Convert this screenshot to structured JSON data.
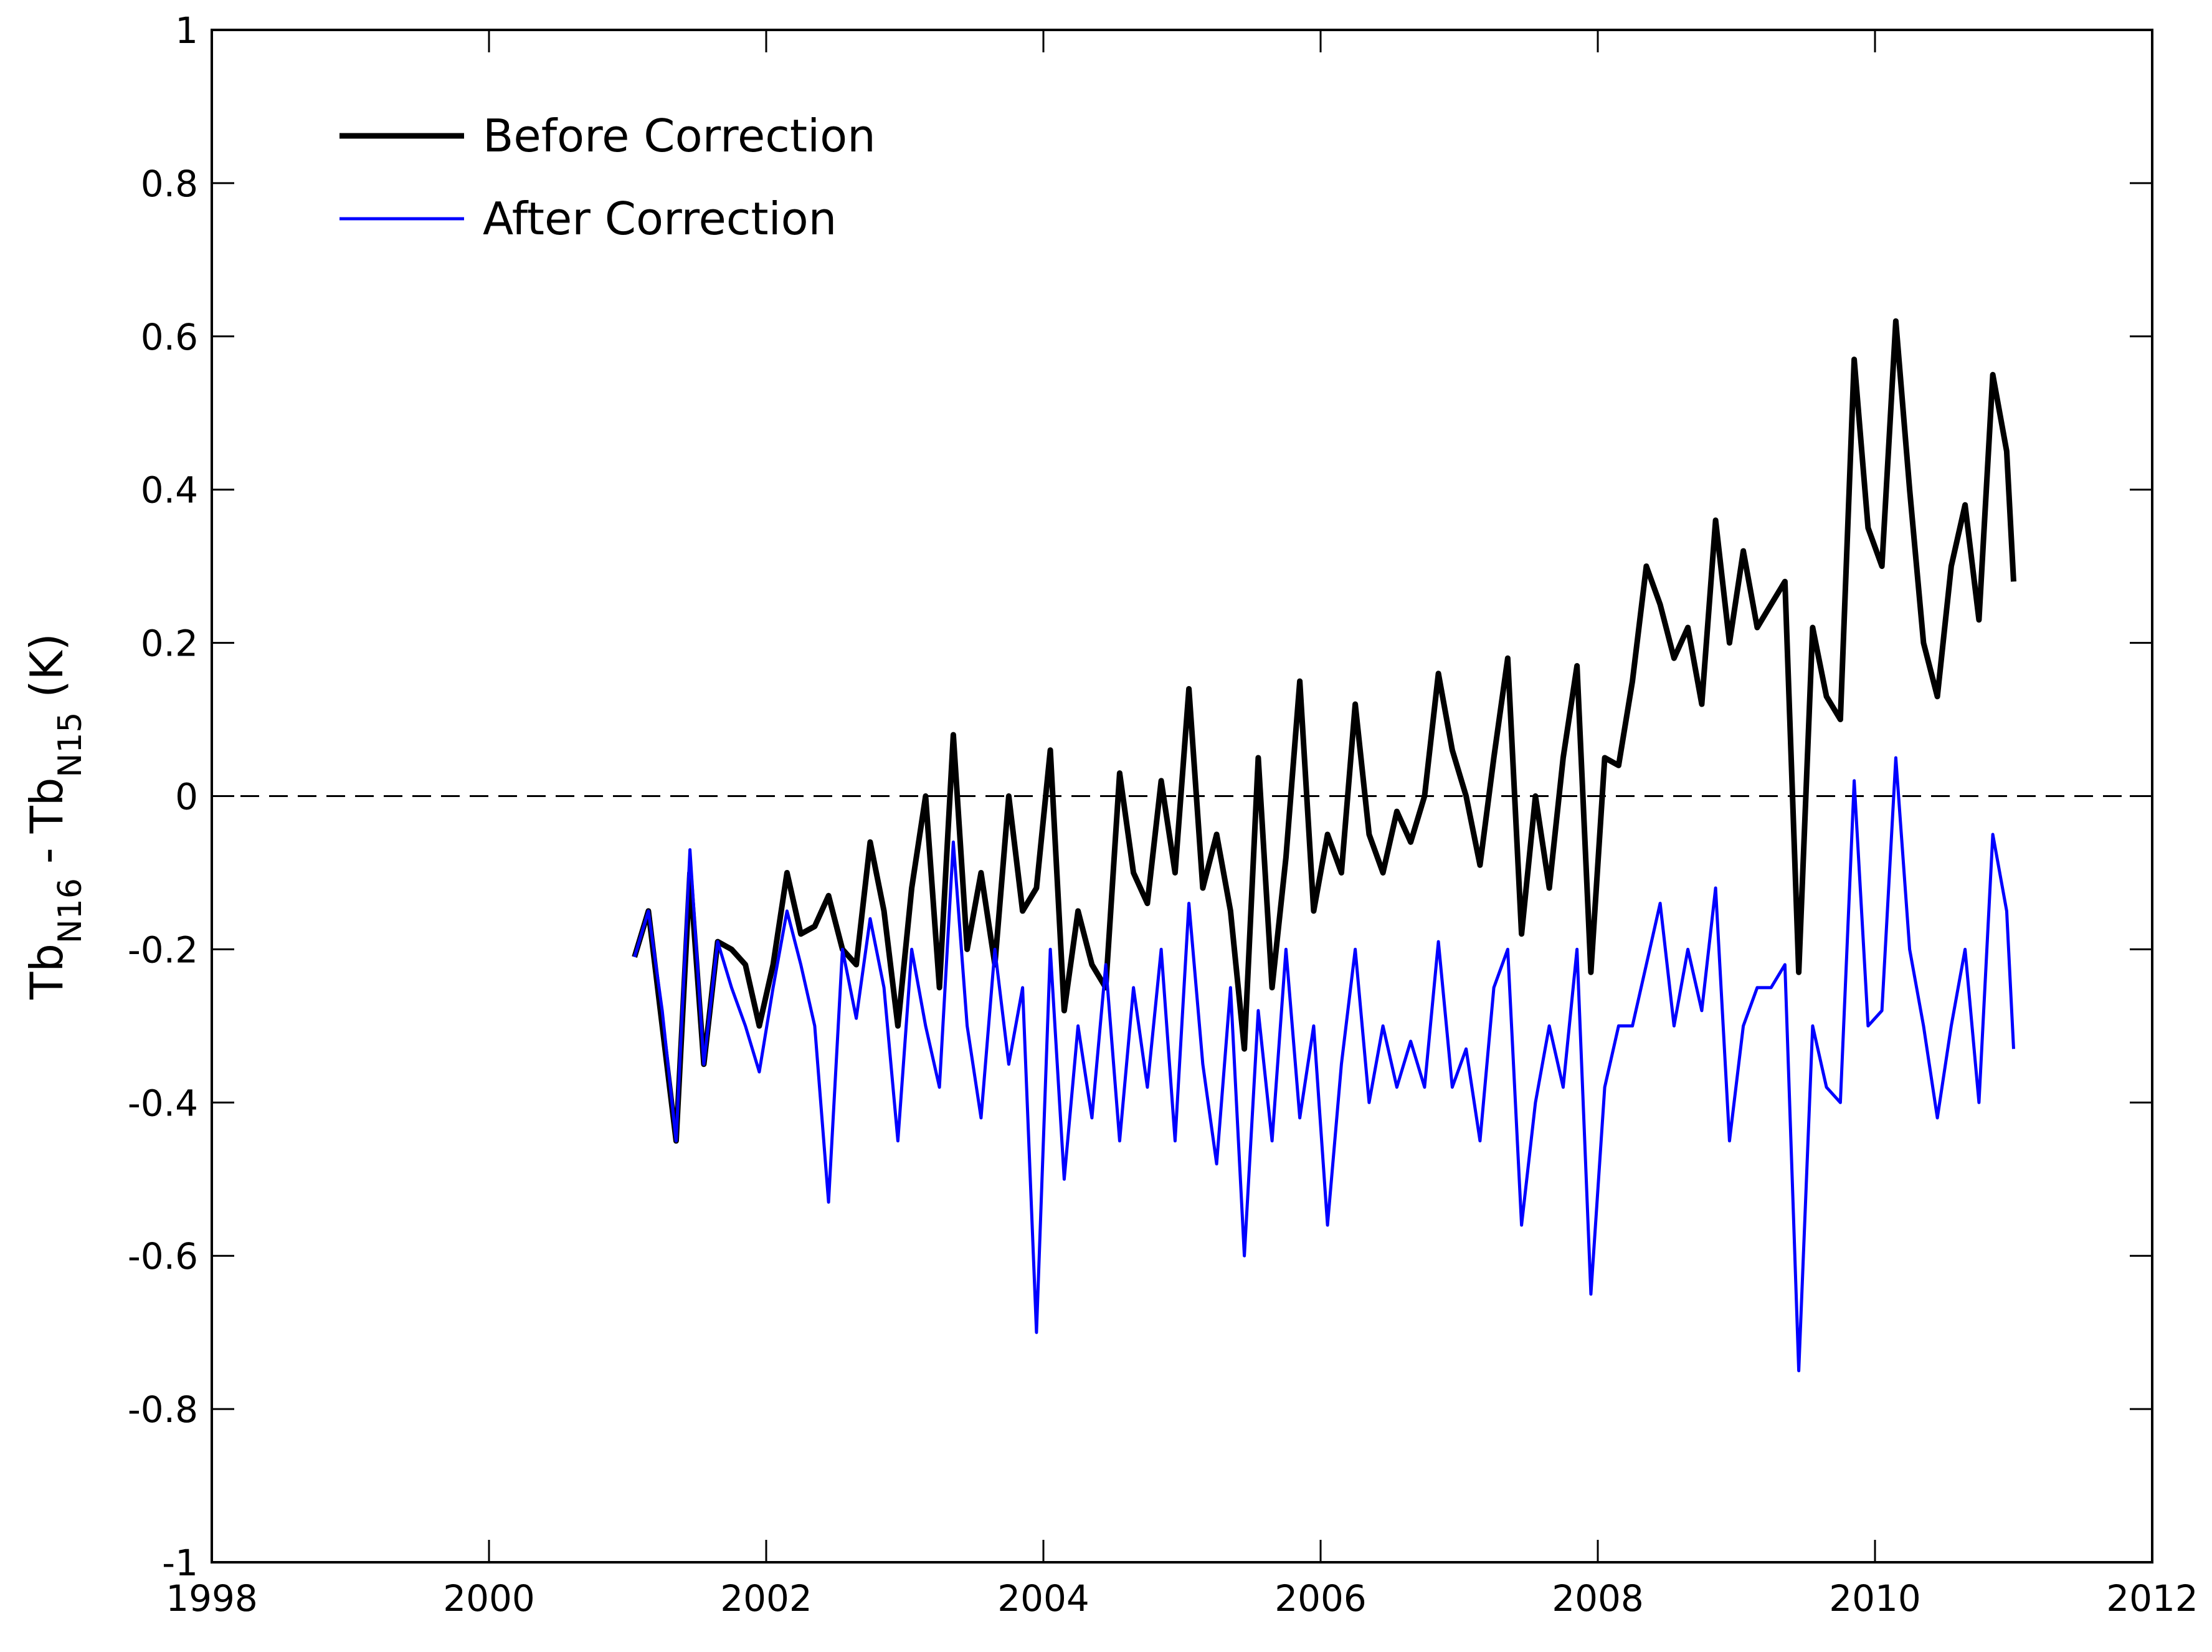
{
  "chart_data": {
    "type": "line",
    "title": "",
    "xlabel": "",
    "ylabel": {
      "base1": "Tb",
      "sub1": "N16",
      "sep": " - ",
      "base2": "Tb",
      "sub2": "N15",
      "unit": " (K)"
    },
    "xlim": [
      1998,
      2012
    ],
    "ylim": [
      -1,
      1
    ],
    "x_ticks": [
      1998,
      2000,
      2002,
      2004,
      2006,
      2008,
      2010,
      2012
    ],
    "x_tick_labels": [
      "1998",
      "2000",
      "2002",
      "2004",
      "2006",
      "2008",
      "2010",
      "2012"
    ],
    "y_ticks": [
      -1,
      -0.8,
      -0.6,
      -0.4,
      -0.2,
      0,
      0.2,
      0.4,
      0.6,
      0.8,
      1
    ],
    "y_tick_labels": [
      "-1",
      "-0.8",
      "-0.6",
      "-0.4",
      "-0.2",
      "0",
      "0.2",
      "0.4",
      "0.6",
      "0.8",
      "1"
    ],
    "reference_line": {
      "y": 0,
      "style": "dashed",
      "color": "#000000"
    },
    "legend_position": "top-left",
    "series": [
      {
        "name": "Before Correction",
        "color": "#000000",
        "x": [
          2001.05,
          2001.15,
          2001.25,
          2001.35,
          2001.45,
          2001.55,
          2001.65,
          2001.75,
          2001.85,
          2001.95,
          2002.05,
          2002.15,
          2002.25,
          2002.35,
          2002.45,
          2002.55,
          2002.65,
          2002.75,
          2002.85,
          2002.95,
          2003.05,
          2003.15,
          2003.25,
          2003.35,
          2003.45,
          2003.55,
          2003.65,
          2003.75,
          2003.85,
          2003.95,
          2004.05,
          2004.15,
          2004.25,
          2004.35,
          2004.45,
          2004.55,
          2004.65,
          2004.75,
          2004.85,
          2004.95,
          2005.05,
          2005.15,
          2005.25,
          2005.35,
          2005.45,
          2005.55,
          2005.65,
          2005.75,
          2005.85,
          2005.95,
          2006.05,
          2006.15,
          2006.25,
          2006.35,
          2006.45,
          2006.55,
          2006.65,
          2006.75,
          2006.85,
          2006.95,
          2007.05,
          2007.15,
          2007.25,
          2007.35,
          2007.45,
          2007.55,
          2007.65,
          2007.75,
          2007.85,
          2007.95,
          2008.05,
          2008.15,
          2008.25,
          2008.35,
          2008.45,
          2008.55,
          2008.65,
          2008.75,
          2008.85,
          2008.95,
          2009.05,
          2009.15,
          2009.25,
          2009.35,
          2009.45,
          2009.55,
          2009.65,
          2009.75,
          2009.85,
          2009.95,
          2010.05,
          2010.15,
          2010.25,
          2010.35,
          2010.45,
          2010.55,
          2010.65,
          2010.75,
          2010.85,
          2010.95,
          2011.0
        ],
        "y": [
          -0.21,
          -0.15,
          -0.3,
          -0.45,
          -0.1,
          -0.35,
          -0.19,
          -0.2,
          -0.22,
          -0.3,
          -0.22,
          -0.1,
          -0.18,
          -0.17,
          -0.13,
          -0.2,
          -0.22,
          -0.06,
          -0.15,
          -0.3,
          -0.12,
          0.0,
          -0.25,
          0.08,
          -0.2,
          -0.1,
          -0.22,
          0.0,
          -0.15,
          -0.12,
          0.06,
          -0.28,
          -0.15,
          -0.22,
          -0.25,
          0.03,
          -0.1,
          -0.14,
          0.02,
          -0.1,
          0.14,
          -0.12,
          -0.05,
          -0.15,
          -0.33,
          0.05,
          -0.25,
          -0.08,
          0.15,
          -0.15,
          -0.05,
          -0.1,
          0.12,
          -0.05,
          -0.1,
          -0.02,
          -0.06,
          0.0,
          0.16,
          0.06,
          0.0,
          -0.09,
          0.05,
          0.18,
          -0.18,
          0.0,
          -0.12,
          0.05,
          0.17,
          -0.23,
          0.05,
          0.04,
          0.15,
          0.3,
          0.25,
          0.18,
          0.22,
          0.12,
          0.36,
          0.2,
          0.32,
          0.22,
          0.25,
          0.28,
          -0.23,
          0.22,
          0.13,
          0.1,
          0.57,
          0.35,
          0.3,
          0.62,
          0.4,
          0.2,
          0.13,
          0.3,
          0.38,
          0.23,
          0.55,
          0.45,
          0.28
        ]
      },
      {
        "name": "After Correction",
        "color": "#0000ff",
        "x": [
          2001.05,
          2001.15,
          2001.25,
          2001.35,
          2001.45,
          2001.55,
          2001.65,
          2001.75,
          2001.85,
          2001.95,
          2002.05,
          2002.15,
          2002.25,
          2002.35,
          2002.45,
          2002.55,
          2002.65,
          2002.75,
          2002.85,
          2002.95,
          2003.05,
          2003.15,
          2003.25,
          2003.35,
          2003.45,
          2003.55,
          2003.65,
          2003.75,
          2003.85,
          2003.95,
          2004.05,
          2004.15,
          2004.25,
          2004.35,
          2004.45,
          2004.55,
          2004.65,
          2004.75,
          2004.85,
          2004.95,
          2005.05,
          2005.15,
          2005.25,
          2005.35,
          2005.45,
          2005.55,
          2005.65,
          2005.75,
          2005.85,
          2005.95,
          2006.05,
          2006.15,
          2006.25,
          2006.35,
          2006.45,
          2006.55,
          2006.65,
          2006.75,
          2006.85,
          2006.95,
          2007.05,
          2007.15,
          2007.25,
          2007.35,
          2007.45,
          2007.55,
          2007.65,
          2007.75,
          2007.85,
          2007.95,
          2008.05,
          2008.15,
          2008.25,
          2008.35,
          2008.45,
          2008.55,
          2008.65,
          2008.75,
          2008.85,
          2008.95,
          2009.05,
          2009.15,
          2009.25,
          2009.35,
          2009.45,
          2009.55,
          2009.65,
          2009.75,
          2009.85,
          2009.95,
          2010.05,
          2010.15,
          2010.25,
          2010.35,
          2010.45,
          2010.55,
          2010.65,
          2010.75,
          2010.85,
          2010.95,
          2011.0
        ],
        "y": [
          -0.21,
          -0.15,
          -0.28,
          -0.45,
          -0.07,
          -0.35,
          -0.19,
          -0.25,
          -0.3,
          -0.36,
          -0.25,
          -0.15,
          -0.22,
          -0.3,
          -0.53,
          -0.2,
          -0.29,
          -0.16,
          -0.25,
          -0.45,
          -0.2,
          -0.3,
          -0.38,
          -0.06,
          -0.3,
          -0.42,
          -0.2,
          -0.35,
          -0.25,
          -0.7,
          -0.2,
          -0.5,
          -0.3,
          -0.42,
          -0.22,
          -0.45,
          -0.25,
          -0.38,
          -0.2,
          -0.45,
          -0.14,
          -0.35,
          -0.48,
          -0.25,
          -0.6,
          -0.28,
          -0.45,
          -0.2,
          -0.42,
          -0.3,
          -0.56,
          -0.35,
          -0.2,
          -0.4,
          -0.3,
          -0.38,
          -0.32,
          -0.38,
          -0.19,
          -0.38,
          -0.33,
          -0.45,
          -0.25,
          -0.2,
          -0.56,
          -0.4,
          -0.3,
          -0.38,
          -0.2,
          -0.65,
          -0.38,
          -0.3,
          -0.3,
          -0.22,
          -0.14,
          -0.3,
          -0.2,
          -0.28,
          -0.12,
          -0.45,
          -0.3,
          -0.25,
          -0.25,
          -0.22,
          -0.75,
          -0.3,
          -0.38,
          -0.4,
          0.02,
          -0.3,
          -0.28,
          0.05,
          -0.2,
          -0.3,
          -0.42,
          -0.3,
          -0.2,
          -0.4,
          -0.05,
          -0.15,
          -0.33
        ]
      }
    ]
  }
}
